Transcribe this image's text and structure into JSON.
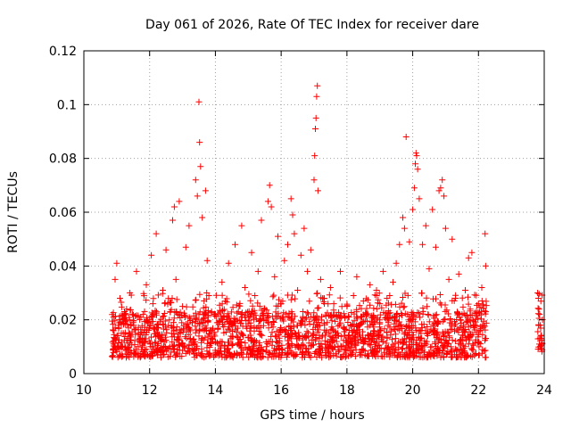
{
  "chart_data": {
    "type": "scatter",
    "title": "Day 061 of 2026, Rate Of TEC Index for receiver dare",
    "xlabel": "GPS time / hours",
    "ylabel": "ROTI / TECUs",
    "xlim": [
      10,
      24
    ],
    "ylim": [
      0,
      0.12
    ],
    "xticks": [
      10,
      12,
      14,
      16,
      18,
      20,
      22,
      24
    ],
    "yticks": [
      0,
      0.02,
      0.04,
      0.06,
      0.08,
      0.1,
      0.12
    ],
    "xtick_labels": [
      "10",
      "12",
      "14",
      "16",
      "18",
      "20",
      "22",
      "24"
    ],
    "ytick_labels": [
      "0",
      "0.02",
      "0.04",
      "0.06",
      "0.08",
      "0.1",
      "0.12"
    ],
    "grid": true,
    "marker": "+",
    "color": "#ff0000",
    "series": [
      {
        "name": "ROTI",
        "points": [
          [
            10.9,
            0.021
          ],
          [
            10.95,
            0.035
          ],
          [
            11.0,
            0.041
          ],
          [
            11.05,
            0.018
          ],
          [
            11.1,
            0.028
          ],
          [
            11.2,
            0.015
          ],
          [
            11.3,
            0.024
          ],
          [
            11.4,
            0.03
          ],
          [
            11.5,
            0.019
          ],
          [
            11.6,
            0.038
          ],
          [
            11.7,
            0.012
          ],
          [
            11.8,
            0.022
          ],
          [
            11.9,
            0.033
          ],
          [
            12.0,
            0.017
          ],
          [
            12.05,
            0.044
          ],
          [
            12.1,
            0.026
          ],
          [
            12.2,
            0.052
          ],
          [
            12.3,
            0.014
          ],
          [
            12.4,
            0.031
          ],
          [
            12.5,
            0.046
          ],
          [
            12.6,
            0.02
          ],
          [
            12.7,
            0.057
          ],
          [
            12.75,
            0.062
          ],
          [
            12.8,
            0.035
          ],
          [
            12.9,
            0.064
          ],
          [
            13.0,
            0.025
          ],
          [
            13.1,
            0.047
          ],
          [
            13.2,
            0.055
          ],
          [
            13.3,
            0.019
          ],
          [
            13.4,
            0.072
          ],
          [
            13.45,
            0.066
          ],
          [
            13.5,
            0.101
          ],
          [
            13.52,
            0.086
          ],
          [
            13.55,
            0.077
          ],
          [
            13.6,
            0.058
          ],
          [
            13.7,
            0.068
          ],
          [
            13.75,
            0.042
          ],
          [
            13.8,
            0.029
          ],
          [
            13.9,
            0.016
          ],
          [
            14.0,
            0.022
          ],
          [
            14.1,
            0.011
          ],
          [
            14.2,
            0.034
          ],
          [
            14.3,
            0.027
          ],
          [
            14.4,
            0.041
          ],
          [
            14.5,
            0.018
          ],
          [
            14.6,
            0.048
          ],
          [
            14.7,
            0.023
          ],
          [
            14.8,
            0.055
          ],
          [
            14.9,
            0.032
          ],
          [
            15.0,
            0.021
          ],
          [
            15.1,
            0.045
          ],
          [
            15.2,
            0.029
          ],
          [
            15.3,
            0.038
          ],
          [
            15.4,
            0.057
          ],
          [
            15.5,
            0.024
          ],
          [
            15.6,
            0.064
          ],
          [
            15.65,
            0.07
          ],
          [
            15.7,
            0.062
          ],
          [
            15.8,
            0.036
          ],
          [
            15.9,
            0.051
          ],
          [
            16.0,
            0.026
          ],
          [
            16.1,
            0.042
          ],
          [
            16.2,
            0.048
          ],
          [
            16.3,
            0.065
          ],
          [
            16.35,
            0.059
          ],
          [
            16.4,
            0.052
          ],
          [
            16.5,
            0.031
          ],
          [
            16.6,
            0.044
          ],
          [
            16.7,
            0.054
          ],
          [
            16.8,
            0.038
          ],
          [
            16.9,
            0.046
          ],
          [
            17.0,
            0.072
          ],
          [
            17.02,
            0.081
          ],
          [
            17.04,
            0.091
          ],
          [
            17.06,
            0.095
          ],
          [
            17.08,
            0.103
          ],
          [
            17.1,
            0.107
          ],
          [
            17.12,
            0.068
          ],
          [
            17.2,
            0.035
          ],
          [
            17.3,
            0.028
          ],
          [
            17.4,
            0.019
          ],
          [
            17.5,
            0.032
          ],
          [
            17.6,
            0.026
          ],
          [
            17.7,
            0.021
          ],
          [
            17.8,
            0.038
          ],
          [
            17.9,
            0.017
          ],
          [
            18.0,
            0.025
          ],
          [
            18.1,
            0.012
          ],
          [
            18.2,
            0.029
          ],
          [
            18.3,
            0.036
          ],
          [
            18.4,
            0.018
          ],
          [
            18.5,
            0.027
          ],
          [
            18.6,
            0.022
          ],
          [
            18.7,
            0.033
          ],
          [
            18.8,
            0.015
          ],
          [
            18.9,
            0.031
          ],
          [
            19.0,
            0.026
          ],
          [
            19.1,
            0.038
          ],
          [
            19.2,
            0.021
          ],
          [
            19.3,
            0.029
          ],
          [
            19.4,
            0.034
          ],
          [
            19.5,
            0.041
          ],
          [
            19.6,
            0.048
          ],
          [
            19.7,
            0.058
          ],
          [
            19.75,
            0.054
          ],
          [
            19.8,
            0.088
          ],
          [
            19.9,
            0.049
          ],
          [
            20.0,
            0.061
          ],
          [
            20.05,
            0.069
          ],
          [
            20.08,
            0.078
          ],
          [
            20.1,
            0.082
          ],
          [
            20.12,
            0.081
          ],
          [
            20.15,
            0.076
          ],
          [
            20.2,
            0.065
          ],
          [
            20.3,
            0.048
          ],
          [
            20.4,
            0.055
          ],
          [
            20.5,
            0.039
          ],
          [
            20.6,
            0.061
          ],
          [
            20.7,
            0.047
          ],
          [
            20.8,
            0.068
          ],
          [
            20.85,
            0.069
          ],
          [
            20.9,
            0.072
          ],
          [
            20.95,
            0.066
          ],
          [
            21.0,
            0.054
          ],
          [
            21.1,
            0.035
          ],
          [
            21.2,
            0.05
          ],
          [
            21.3,
            0.028
          ],
          [
            21.4,
            0.037
          ],
          [
            21.5,
            0.022
          ],
          [
            21.6,
            0.031
          ],
          [
            21.7,
            0.043
          ],
          [
            21.8,
            0.045
          ],
          [
            21.9,
            0.018
          ],
          [
            22.0,
            0.026
          ],
          [
            22.1,
            0.032
          ],
          [
            22.2,
            0.052
          ],
          [
            22.22,
            0.04
          ],
          [
            23.8,
            0.03
          ],
          [
            23.82,
            0.028
          ],
          [
            23.84,
            0.024
          ],
          [
            23.86,
            0.022
          ],
          [
            23.88,
            0.018
          ],
          [
            23.9,
            0.014
          ],
          [
            23.92,
            0.013
          ],
          [
            23.94,
            0.011
          ]
        ],
        "band": {
          "x_ranges": [
            [
              10.85,
              22.25
            ],
            [
              23.8,
              23.95
            ]
          ],
          "base_min": 0.006,
          "base_typical": 0.015,
          "base_max": 0.03,
          "density_per_hour": 170
        }
      }
    ]
  }
}
